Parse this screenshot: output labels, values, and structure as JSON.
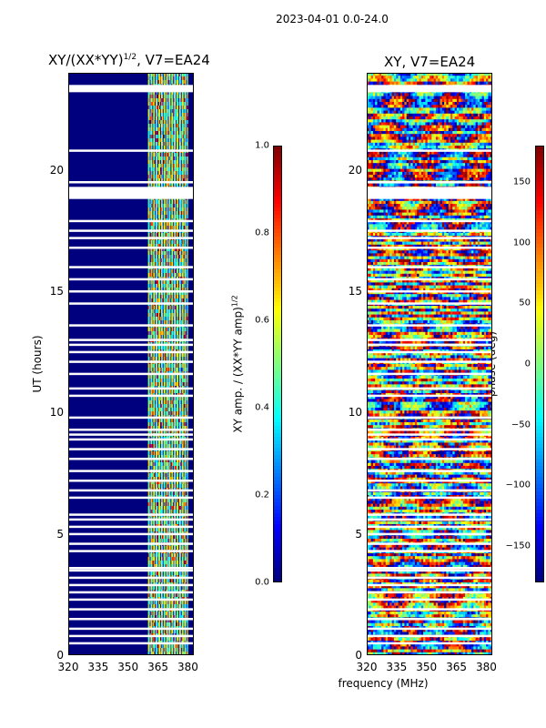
{
  "suptitle": "2023-04-01 0.0-24.0",
  "chart_data": [
    {
      "type": "heatmap",
      "title_text": "XY/(XX*YY)",
      "title_exponent": "1/2",
      "title_suffix": ", V7=EA24",
      "xlabel": "",
      "ylabel": "UT (hours)",
      "xlim": [
        320,
        383
      ],
      "ylim": [
        0,
        24
      ],
      "xticks": [
        320,
        335,
        350,
        365,
        380
      ],
      "yticks": [
        0,
        5,
        10,
        15,
        20
      ],
      "colormap": "jet",
      "colorbar": {
        "label_text": "XY amp. / (XX*YY amp)",
        "label_exponent": "1/2",
        "range": [
          0.0,
          1.0
        ],
        "ticks": [
          "0.0",
          "0.2",
          "0.4",
          "0.6",
          "0.8",
          "1.0"
        ]
      },
      "active_band_mhz": [
        360,
        380
      ],
      "blank_rows_ut": [
        23.4,
        20.8,
        19.5,
        19.2,
        18.9,
        17.9,
        17.5,
        17.2,
        16.8,
        16.0,
        15.5,
        15.0,
        14.5,
        13.6,
        13.0,
        12.8,
        12.5,
        12.1,
        11.6,
        11.0,
        10.7,
        9.8,
        9.3,
        9.1,
        8.9,
        8.5,
        8.1,
        7.6,
        7.2,
        6.8,
        6.5,
        5.8,
        5.6,
        5.3,
        5.0,
        4.6,
        4.3,
        3.6,
        3.5,
        3.2,
        2.9,
        2.6,
        2.3,
        1.9,
        1.5,
        1.1,
        0.8,
        0.5
      ]
    },
    {
      "type": "heatmap",
      "title": "XY, V7=EA24",
      "xlabel": "frequency (MHz)",
      "ylabel": "",
      "xlim": [
        320,
        383
      ],
      "ylim": [
        0,
        24
      ],
      "xticks": [
        320,
        335,
        350,
        365,
        380
      ],
      "yticks": [
        0,
        5,
        10,
        15,
        20
      ],
      "colormap": "jet",
      "colorbar": {
        "label": "phase (deg)",
        "range": [
          -180,
          180
        ],
        "ticks": [
          "−150",
          "−100",
          "−50",
          "0",
          "50",
          "100",
          "150"
        ]
      },
      "blank_rows_ut": [
        23.4,
        20.8,
        19.5,
        19.2,
        18.9,
        17.9,
        17.5,
        17.2,
        16.8,
        16.0,
        15.5,
        15.0,
        14.5,
        13.6,
        13.0,
        12.8,
        12.5,
        12.1,
        11.6,
        11.0,
        10.7,
        9.8,
        9.3,
        9.1,
        8.9,
        8.5,
        8.1,
        7.6,
        7.2,
        6.8,
        6.5,
        5.8,
        5.6,
        5.3,
        5.0,
        4.6,
        4.3,
        3.6,
        3.5,
        3.2,
        2.9,
        2.6,
        2.3,
        1.9,
        1.5,
        1.1,
        0.8,
        0.5
      ]
    }
  ]
}
